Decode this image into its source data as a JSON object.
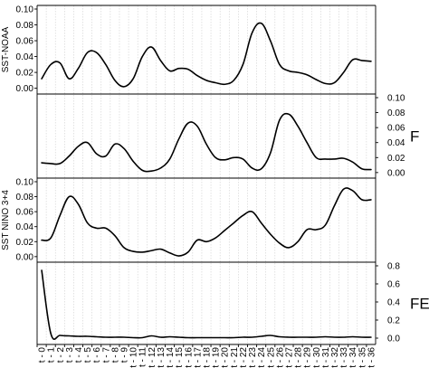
{
  "chart_data": [
    {
      "type": "line",
      "panel": 1,
      "ylabel": "SST-NOAA",
      "side_label": "",
      "y_axis_side": "left",
      "ylim": [
        -0.005,
        0.1
      ],
      "yticks": [
        "0.00",
        "0.02",
        "0.04",
        "0.06",
        "0.08",
        "0.10"
      ],
      "ytick_values": [
        0,
        0.02,
        0.04,
        0.06,
        0.08,
        0.1
      ],
      "values": [
        0.012,
        0.03,
        0.032,
        0.012,
        0.025,
        0.045,
        0.045,
        0.03,
        0.01,
        0.002,
        0.012,
        0.04,
        0.052,
        0.035,
        0.022,
        0.025,
        0.024,
        0.016,
        0.01,
        0.007,
        0.005,
        0.01,
        0.03,
        0.07,
        0.082,
        0.06,
        0.03,
        0.022,
        0.02,
        0.017,
        0.011,
        0.006,
        0.007,
        0.02,
        0.036,
        0.035,
        0.034
      ]
    },
    {
      "type": "line",
      "panel": 2,
      "ylabel": "",
      "side_label": "F",
      "y_axis_side": "right",
      "ylim": [
        -0.005,
        0.1
      ],
      "yticks": [
        "0.00",
        "0.02",
        "0.04",
        "0.06",
        "0.08",
        "0.10"
      ],
      "ytick_values": [
        0,
        0.02,
        0.04,
        0.06,
        0.08,
        0.1
      ],
      "values": [
        0.013,
        0.012,
        0.012,
        0.022,
        0.035,
        0.04,
        0.025,
        0.022,
        0.038,
        0.032,
        0.015,
        0.003,
        0.002,
        0.006,
        0.018,
        0.045,
        0.066,
        0.062,
        0.038,
        0.02,
        0.017,
        0.02,
        0.018,
        0.006,
        0.005,
        0.026,
        0.07,
        0.078,
        0.062,
        0.04,
        0.02,
        0.018,
        0.018,
        0.019,
        0.014,
        0.005,
        0.004
      ]
    },
    {
      "type": "line",
      "panel": 3,
      "ylabel": "SST NINO 3+4",
      "side_label": "",
      "y_axis_side": "left",
      "ylim": [
        -0.005,
        0.1
      ],
      "yticks": [
        "0.00",
        "0.02",
        "0.04",
        "0.06",
        "0.08",
        "0.10"
      ],
      "ytick_values": [
        0,
        0.02,
        0.04,
        0.06,
        0.08,
        0.1
      ],
      "values": [
        0.022,
        0.025,
        0.055,
        0.08,
        0.07,
        0.045,
        0.038,
        0.038,
        0.028,
        0.012,
        0.007,
        0.006,
        0.008,
        0.01,
        0.005,
        0.001,
        0.006,
        0.022,
        0.02,
        0.025,
        0.035,
        0.045,
        0.055,
        0.06,
        0.045,
        0.03,
        0.018,
        0.012,
        0.02,
        0.036,
        0.036,
        0.042,
        0.068,
        0.09,
        0.088,
        0.076,
        0.076
      ]
    },
    {
      "type": "line",
      "panel": 4,
      "ylabel": "",
      "side_label": "FE",
      "y_axis_side": "right",
      "ylim": [
        -0.05,
        0.8
      ],
      "yticks": [
        "0.0",
        "0.2",
        "0.4",
        "0.6",
        "0.8"
      ],
      "ytick_values": [
        0,
        0.2,
        0.4,
        0.6,
        0.8
      ],
      "values": [
        0.75,
        0.05,
        0.03,
        0.025,
        0.02,
        0.02,
        0.015,
        0.01,
        0.01,
        0.01,
        0.005,
        0.005,
        0.025,
        0.01,
        0.015,
        0.01,
        0.005,
        0.005,
        0.005,
        0.005,
        0.005,
        0.005,
        0.01,
        0.01,
        0.02,
        0.03,
        0.015,
        0.01,
        0.01,
        0.01,
        0.01,
        0.015,
        0.01,
        0.01,
        0.015,
        0.01,
        0.01
      ]
    }
  ],
  "x_categories": [
    "t - 0",
    "t - 1",
    "t - 2",
    "t - 3",
    "t - 4",
    "t - 5",
    "t - 6",
    "t - 7",
    "t - 8",
    "t - 9",
    "t - 10",
    "t - 11",
    "t - 12",
    "t - 13",
    "t - 14",
    "t - 15",
    "t - 16",
    "t - 17",
    "t - 18",
    "t - 19",
    "t - 20",
    "t - 21",
    "t - 22",
    "t - 23",
    "t - 24",
    "t - 25",
    "t - 26",
    "t - 27",
    "t - 28",
    "t - 29",
    "t - 30",
    "t - 31",
    "t - 32",
    "t - 33",
    "t - 34",
    "t - 35",
    "t - 36"
  ],
  "grid": true
}
